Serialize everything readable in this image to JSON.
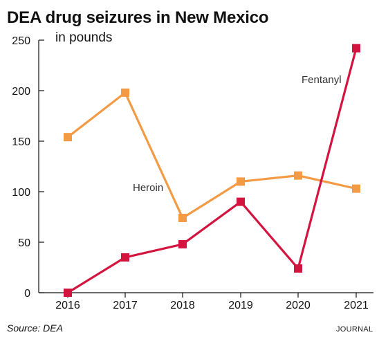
{
  "chart_data": {
    "type": "line",
    "title": "DEA drug seizures in New Mexico",
    "subtitle": "in pounds",
    "x": [
      2016,
      2017,
      2018,
      2019,
      2020,
      2021
    ],
    "ylim": [
      0,
      250
    ],
    "yticks": [
      0,
      50,
      100,
      150,
      200,
      250
    ],
    "grid": false,
    "series": [
      {
        "name": "Heroin",
        "color": "#f39a45",
        "values": [
          154,
          198,
          74,
          110,
          116,
          103
        ]
      },
      {
        "name": "Fentanyl",
        "color": "#d2143f",
        "values": [
          0,
          35,
          48,
          90,
          24,
          242
        ]
      }
    ]
  },
  "footer": {
    "source": "Source: DEA",
    "credit": "JOURNAL"
  }
}
